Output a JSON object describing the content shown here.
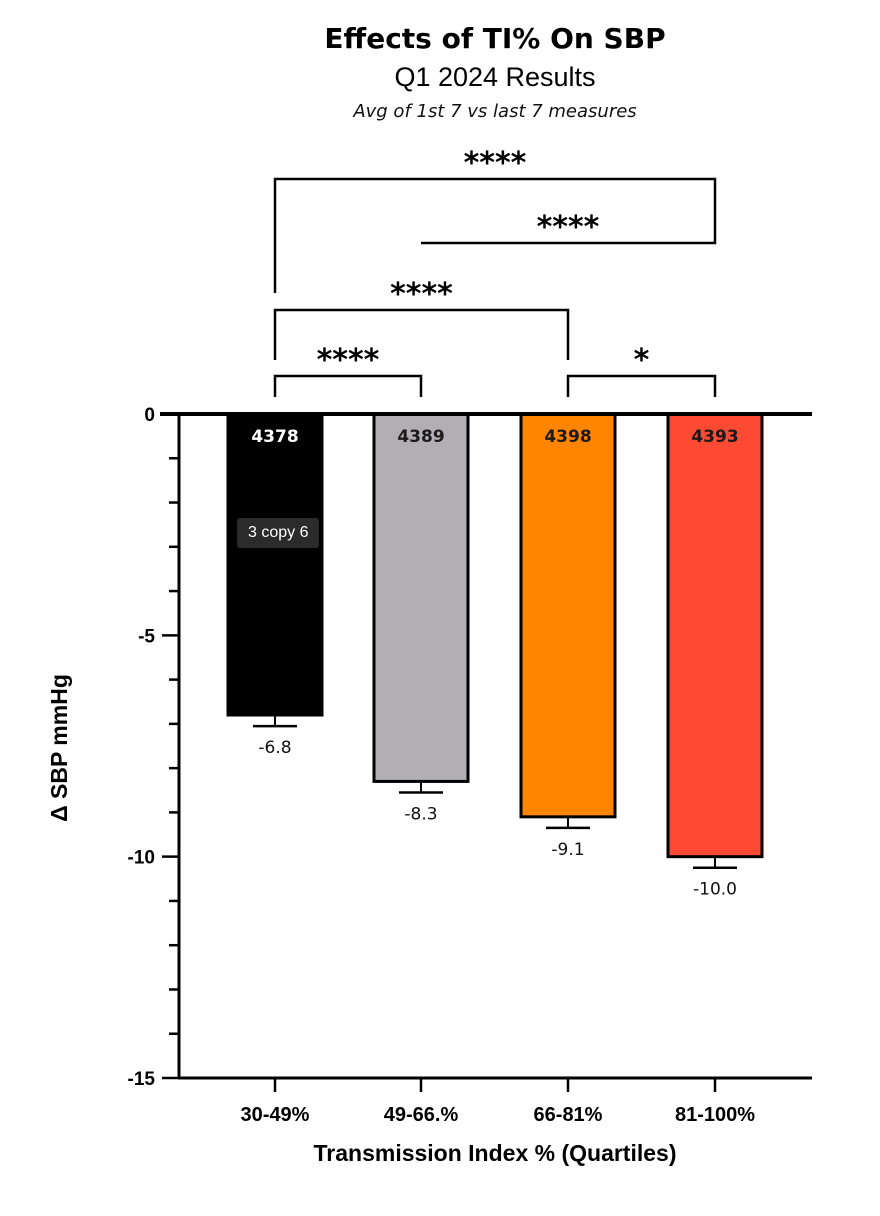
{
  "tooltip": "3 copy 6",
  "chart_data": {
    "type": "bar",
    "title": "Effects of TI% On SBP",
    "subtitle": "Q1 2024 Results",
    "note": "Avg of 1st 7 vs last 7 measures",
    "xlabel": "Transmission Index % (Quartiles)",
    "ylabel": "Δ SBP mmHg",
    "ylim": [
      -15,
      0
    ],
    "yticks": [
      0,
      -5,
      -10,
      -15
    ],
    "grid": false,
    "categories": [
      "30-49%",
      "49-66.%",
      "66-81%",
      "81-100%"
    ],
    "values": [
      -6.8,
      -8.3,
      -9.1,
      -10.0
    ],
    "value_labels": [
      "-6.8",
      "-8.3",
      "-9.1",
      "-10.0"
    ],
    "errors": [
      0.25,
      0.25,
      0.25,
      0.25
    ],
    "n_labels": [
      "4378",
      "4389",
      "4398",
      "4393"
    ],
    "colors": [
      "#000000",
      "#b1afb4",
      "#ff8400",
      "#ff4a33"
    ],
    "n_label_colors": [
      "#ffffff",
      "#1a1a1a",
      "#1a1a1a",
      "#1a1a1a"
    ],
    "significance": [
      {
        "from": 0,
        "to": 3,
        "label": "****"
      },
      {
        "from": 1,
        "to": 3,
        "label": "****"
      },
      {
        "from": 0,
        "to": 2,
        "label": "****"
      },
      {
        "from": 0,
        "to": 1,
        "label": "****"
      },
      {
        "from": 2,
        "to": 3,
        "label": "*"
      }
    ]
  }
}
